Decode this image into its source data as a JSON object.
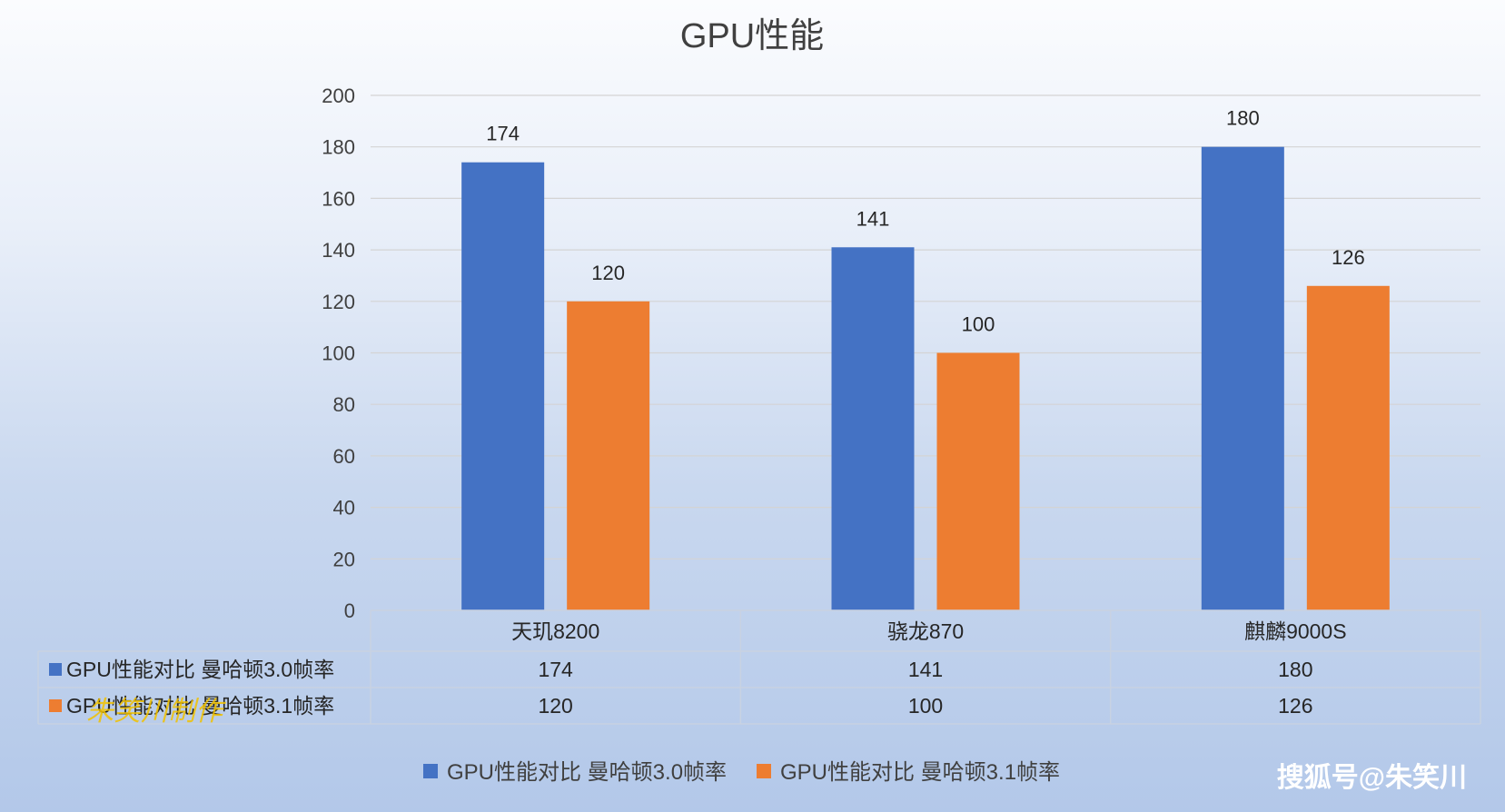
{
  "chart_data": {
    "type": "bar",
    "title": "GPU性能",
    "categories": [
      "天玑8200",
      "骁龙870",
      "麒麟9000S"
    ],
    "series": [
      {
        "name": "GPU性能对比 曼哈顿3.0帧率",
        "values": [
          174,
          141,
          180
        ],
        "color": "#4472c4"
      },
      {
        "name": "GPU性能对比 曼哈顿3.1帧率",
        "values": [
          120,
          100,
          126
        ],
        "color": "#ed7d31"
      }
    ],
    "ylim": [
      0,
      200
    ],
    "yticks": [
      0,
      20,
      40,
      60,
      80,
      100,
      120,
      140,
      160,
      180,
      200
    ],
    "grid": true,
    "data_table": true,
    "legend_position": "bottom"
  },
  "watermark": "搜狐号@朱笑川",
  "signature": "朱笑川制作"
}
